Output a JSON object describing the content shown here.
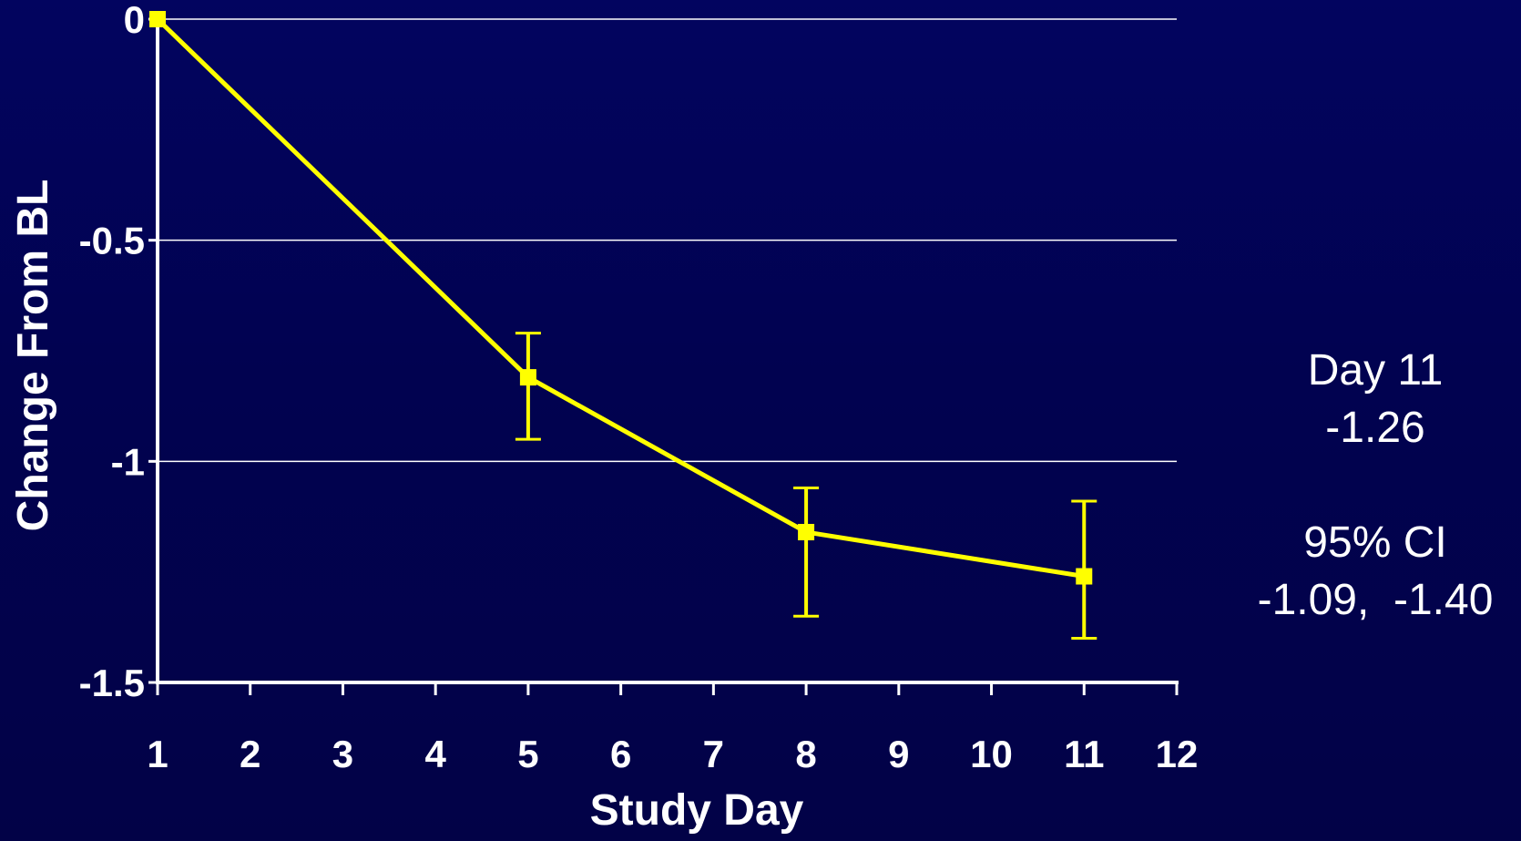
{
  "colors": {
    "background": "#020255",
    "series": "#ffff00",
    "axis": "#ffffff",
    "grid": "#ffffff"
  },
  "chart_data": {
    "type": "line",
    "title": "",
    "xlabel": "Study Day",
    "ylabel": "Change From BL",
    "xlim": [
      1,
      12
    ],
    "ylim": [
      -1.5,
      0
    ],
    "x_ticks": [
      1,
      2,
      3,
      4,
      5,
      6,
      7,
      8,
      9,
      10,
      11,
      12
    ],
    "x_tick_labels": [
      "1",
      "2",
      "3",
      "4",
      "5",
      "6",
      "7",
      "8",
      "9",
      "10",
      "11",
      "12"
    ],
    "y_ticks": [
      0,
      -0.5,
      -1,
      -1.5
    ],
    "y_tick_labels": [
      "0",
      "-0.5",
      "-1",
      "-1.5"
    ],
    "grid": "horizontal",
    "legend": "none",
    "marker": "square",
    "series": [
      {
        "x": [
          1,
          5,
          8,
          11
        ],
        "y": [
          0,
          -0.81,
          -1.16,
          -1.26
        ],
        "error_upper": [
          null,
          -0.71,
          -1.06,
          -1.09
        ],
        "error_lower": [
          null,
          -0.95,
          -1.35,
          -1.4
        ]
      }
    ]
  },
  "annotation": {
    "line1": "Day 11",
    "line2": "-1.26",
    "line3": "95% CI",
    "line4": "-1.09,  -1.40"
  }
}
